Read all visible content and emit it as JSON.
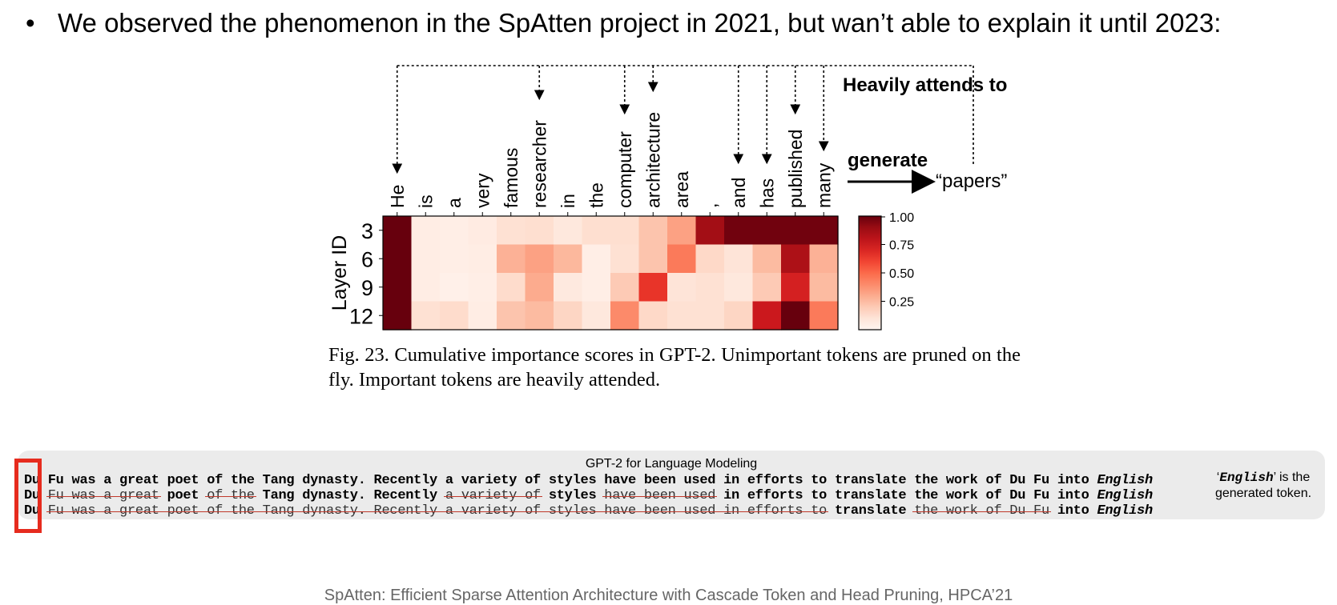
{
  "slide": {
    "bullet_symbol": "•",
    "bullet_text": "We observed the phenomenon in the SpAtten project in 2021, but wan’t able to explain it until 2023:",
    "footer": "SpAtten: Efficient Sparse Attention Architecture with Cascade Token and Head Pruning, HPCA’21"
  },
  "chart_data": {
    "type": "heatmap",
    "title": "",
    "xlabel": "",
    "ylabel": "Layer ID",
    "tokens": [
      "He",
      "is",
      "a",
      "very",
      "famous",
      "researcher",
      "in",
      "the",
      "computer",
      "architecture",
      "area",
      ",",
      "and",
      "has",
      "published",
      "many"
    ],
    "layers": [
      "3",
      "6",
      "9",
      "12"
    ],
    "values": [
      [
        1.0,
        0.05,
        0.04,
        0.06,
        0.12,
        0.13,
        0.08,
        0.13,
        0.13,
        0.22,
        0.33,
        0.88,
        0.98,
        0.98,
        0.98,
        0.98
      ],
      [
        1.0,
        0.05,
        0.04,
        0.05,
        0.28,
        0.33,
        0.26,
        0.04,
        0.12,
        0.22,
        0.45,
        0.15,
        0.1,
        0.25,
        0.85,
        0.28
      ],
      [
        1.0,
        0.05,
        0.03,
        0.04,
        0.14,
        0.3,
        0.07,
        0.04,
        0.2,
        0.65,
        0.1,
        0.12,
        0.08,
        0.2,
        0.72,
        0.25
      ],
      [
        1.0,
        0.12,
        0.14,
        0.05,
        0.22,
        0.25,
        0.16,
        0.08,
        0.4,
        0.15,
        0.12,
        0.12,
        0.16,
        0.75,
        1.0,
        0.45
      ]
    ],
    "colorbar": {
      "ticks": [
        "1.00",
        "0.75",
        "0.50",
        "0.25"
      ],
      "range": [
        0,
        1
      ]
    },
    "attended_tokens": [
      "He",
      "researcher",
      "computer",
      "architecture",
      "and",
      "has",
      "published",
      "many"
    ],
    "annotation_title": "Heavily attends to",
    "annotation_generate": "generate",
    "annotation_target": "“papers”",
    "caption": "Fig. 23.  Cumulative importance scores in GPT-2. Unimportant tokens are pruned on the fly. Important tokens are heavily attended."
  },
  "lm_example": {
    "title": "GPT-2 for Language Modeling",
    "lines": [
      [
        {
          "t": "Du",
          "p": false
        },
        {
          "t": "Fu was a great poet of the Tang dynasty. Recently a variety of styles have been used in efforts to translate the work of Du Fu into",
          "p": false
        },
        {
          "t": "English",
          "p": false,
          "g": true
        }
      ],
      [
        {
          "t": "Du",
          "p": false
        },
        {
          "t": "Fu was a great",
          "p": true
        },
        {
          "t": "poet",
          "p": false
        },
        {
          "t": "of the",
          "p": true
        },
        {
          "t": "Tang dynasty. Recently",
          "p": false
        },
        {
          "t": "a variety of",
          "p": true
        },
        {
          "t": "styles",
          "p": false
        },
        {
          "t": "have been used",
          "p": true
        },
        {
          "t": "in efforts to translate the work of Du Fu into",
          "p": false
        },
        {
          "t": "English",
          "p": false,
          "g": true
        }
      ],
      [
        {
          "t": "Du",
          "p": false
        },
        {
          "t": "Fu was a great poet of the Tang dynasty. Recently a variety of styles have been used in efforts to",
          "p": true
        },
        {
          "t": "translate",
          "p": false
        },
        {
          "t": "the work of Du Fu",
          "p": true
        },
        {
          "t": "into",
          "p": false
        },
        {
          "t": "English",
          "p": false,
          "g": true
        }
      ]
    ],
    "note_token": "English",
    "note_quote_open": "‘",
    "note_quote_close": "’",
    "note_rest": " is the generated token."
  }
}
